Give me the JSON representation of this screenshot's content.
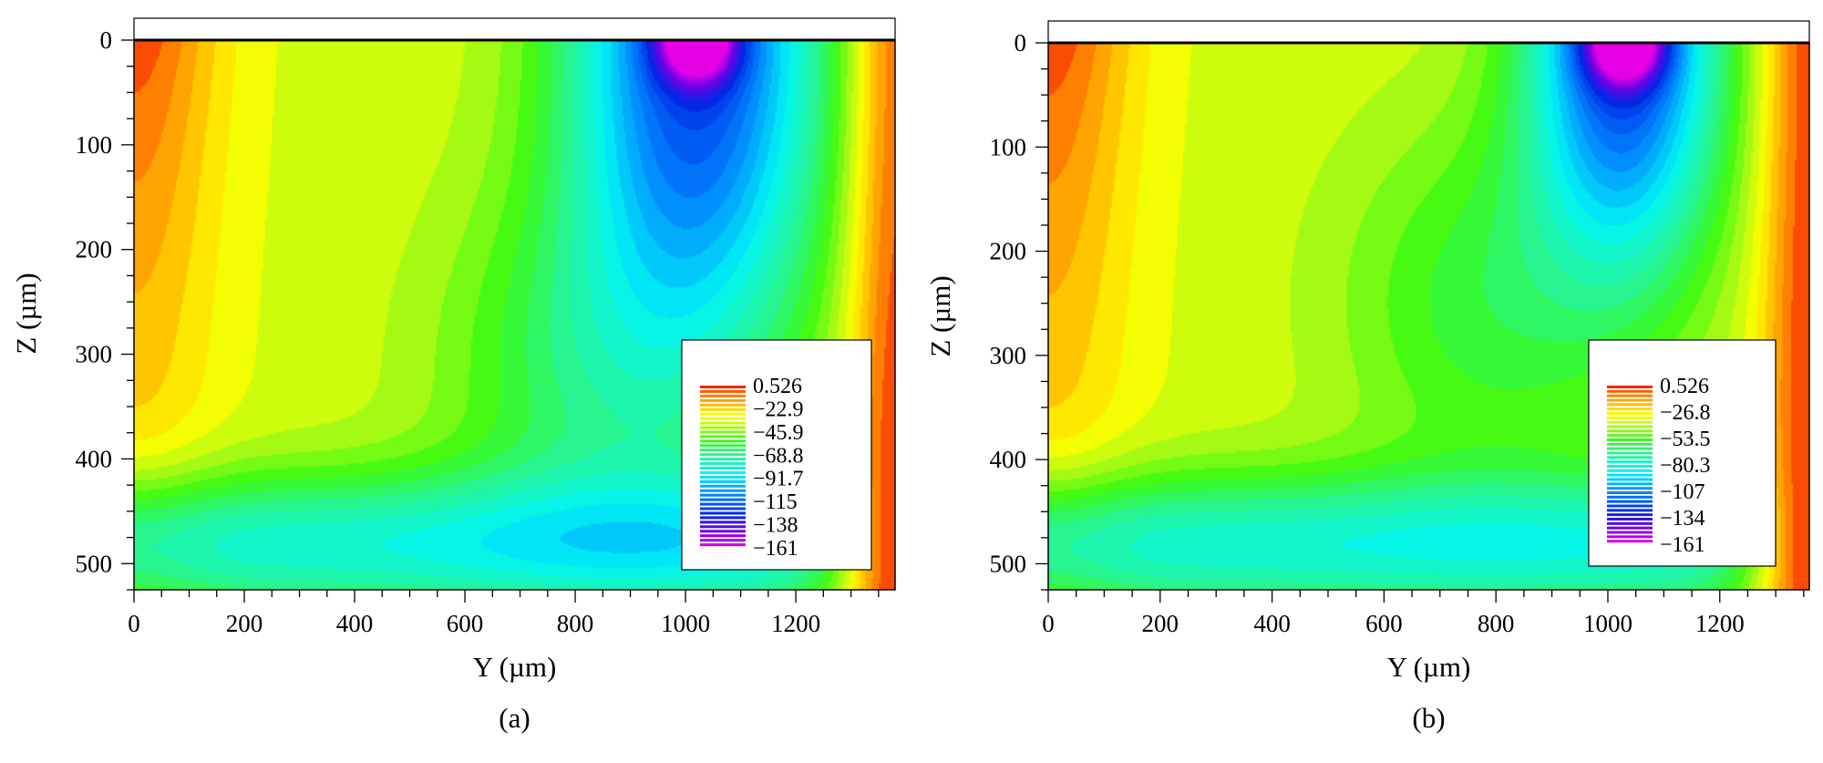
{
  "chart_data": [
    {
      "type": "heatmap",
      "panel_label": "(a)",
      "xlabel": "Y (µm)",
      "ylabel": "Z (µm)",
      "xlim": [
        0,
        1380
      ],
      "ylim": [
        525,
        0
      ],
      "x_ticks": [
        0,
        200,
        400,
        600,
        800,
        1000,
        1200
      ],
      "y_ticks": [
        0,
        100,
        200,
        300,
        400,
        500
      ],
      "x_tick_labels": [
        "0",
        "200",
        "400",
        "600",
        "800",
        "1000",
        "1200"
      ],
      "y_tick_labels": [
        "0",
        "100",
        "200",
        "300",
        "400",
        "500"
      ],
      "legend_position": "bottom-right",
      "colorbar": {
        "min": -161,
        "max": 0.526,
        "labels": [
          "0.526",
          "−22.9",
          "−45.9",
          "−68.8",
          "−91.7",
          "−115",
          "−138",
          "−161"
        ]
      },
      "features": {
        "min_center_y": 1020,
        "min_spread_y": 230,
        "min_spread_z": 300,
        "saddle_y": 800,
        "saddle_z": 320
      }
    },
    {
      "type": "heatmap",
      "panel_label": "(b)",
      "xlabel": "Y (µm)",
      "ylabel": "Z (µm)",
      "xlim": [
        0,
        1360
      ],
      "ylim": [
        525,
        0
      ],
      "x_ticks": [
        0,
        200,
        400,
        600,
        800,
        1000,
        1200
      ],
      "y_ticks": [
        0,
        100,
        200,
        300,
        400,
        500
      ],
      "x_tick_labels": [
        "0",
        "200",
        "400",
        "600",
        "800",
        "1000",
        "1200"
      ],
      "y_tick_labels": [
        "0",
        "100",
        "200",
        "300",
        "400",
        "500"
      ],
      "legend_position": "bottom-right",
      "colorbar": {
        "min": -161,
        "max": 0.526,
        "labels": [
          "0.526",
          "−26.8",
          "−53.5",
          "−80.3",
          "−107",
          "−134",
          "−161"
        ]
      },
      "features": {
        "min_center_y": 1030,
        "min_spread_y": 170,
        "min_spread_z": 210,
        "saddle_y": 780,
        "saddle_z": 250
      }
    }
  ]
}
